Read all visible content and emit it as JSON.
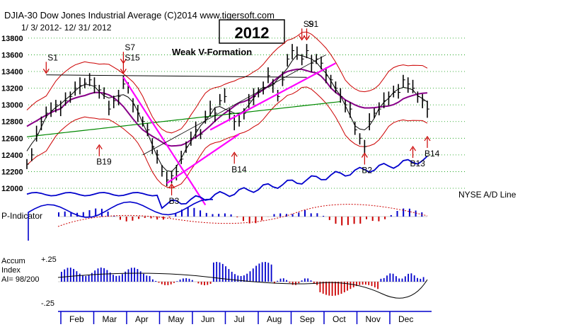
{
  "header": {
    "line1": "DJIA-30  Dow Jones Industrial Average   (C)2014 www.tigersoft.com",
    "line2": "1/ 3/ 2012-  12/ 31/ 2012",
    "year_box": "2012",
    "subtitle": "Weak V-Formation"
  },
  "panels": {
    "pindicator_label": "P-Indicator",
    "accum_label_1": "Accum",
    "accum_label_2": "Index",
    "accum_label_3": "AI= 98/200",
    "accum_top": "+.25",
    "accum_bottom": "-.25",
    "nyse_ad_label": "NYSE A/D Line"
  },
  "chart_data": {
    "type": "line",
    "title": "DJIA-30  Dow Jones Industrial Average",
    "y_ticks": [
      "13800",
      "13600",
      "13400",
      "13200",
      "13000",
      "12800",
      "12600",
      "12400",
      "12200",
      "12000"
    ],
    "ylim": [
      12000,
      13850
    ],
    "months": [
      "Feb",
      "Mar",
      "Apr",
      "May",
      "Jun",
      "Jul",
      "Aug",
      "Sep",
      "Oct",
      "Nov",
      "Dec"
    ],
    "closes": [
      12290,
      12400,
      12650,
      12800,
      12900,
      12930,
      13000,
      12970,
      13050,
      13100,
      13200,
      13230,
      13260,
      13300,
      13230,
      13180,
      13130,
      12950,
      13050,
      13100,
      13250,
      13210,
      13000,
      12900,
      12800,
      12700,
      12500,
      12400,
      12200,
      12100,
      12150,
      12200,
      12350,
      12500,
      12600,
      12700,
      12650,
      12850,
      12950,
      12900,
      13050,
      13100,
      12900,
      12800,
      12800,
      12900,
      13050,
      13100,
      13150,
      13200,
      13350,
      13250,
      13100,
      13300,
      13550,
      13650,
      13600,
      13550,
      13650,
      13500,
      13550,
      13500,
      13350,
      13300,
      13200,
      13100,
      13000,
      12950,
      12700,
      12600,
      12500,
      12800,
      12900,
      12950,
      13050,
      13100,
      13150,
      13150,
      13300,
      13250,
      13200,
      13100,
      13050,
      12950
    ],
    "signals": [
      {
        "label": "S1",
        "x_index": 4,
        "dir": "sell",
        "value": 13380
      },
      {
        "label": "S7",
        "x_index": 20,
        "dir": "sell",
        "value": 13500
      },
      {
        "label": "S15",
        "x_index": 20,
        "dir": "sell",
        "value": 13380
      },
      {
        "label": "B19",
        "x_index": 15,
        "dir": "buy",
        "value": 12520
      },
      {
        "label": "B3",
        "x_index": 30,
        "dir": "buy",
        "value": 12050
      },
      {
        "label": "B14",
        "x_index": 43,
        "dir": "buy",
        "value": 12430
      },
      {
        "label": "S9",
        "x_index": 57,
        "dir": "sell",
        "value": 13780
      },
      {
        "label": "S1",
        "x_index": 58,
        "dir": "sell",
        "value": 13780
      },
      {
        "label": "B2",
        "x_index": 70,
        "dir": "buy",
        "value": 12420
      },
      {
        "label": "B13",
        "x_index": 80,
        "dir": "buy",
        "value": 12500
      },
      {
        "label": "B14",
        "x_index": 83,
        "dir": "buy",
        "value": 12620
      }
    ],
    "colors": {
      "price": "#000000",
      "band": "#cc0000",
      "ma": "#880088",
      "ma200": "#008800",
      "trendline": "#ff00ff",
      "ad_line": "#0000cc",
      "positive": "#0000cc",
      "negative": "#cc0000",
      "grid": "#009900"
    }
  }
}
